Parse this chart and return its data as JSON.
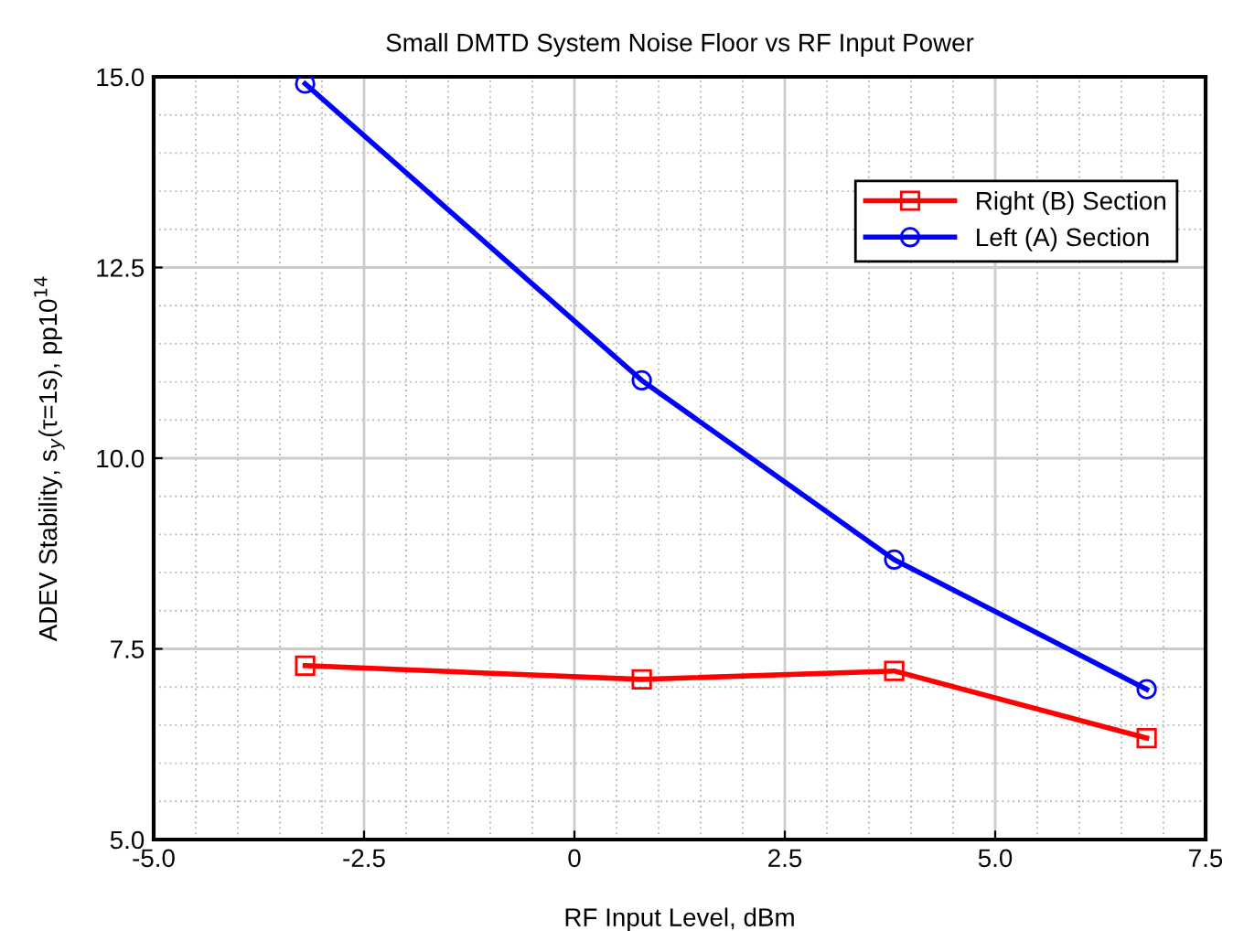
{
  "chart_data": {
    "type": "line",
    "title": "Small DMTD System Noise Floor vs RF Input Power",
    "xlabel": "RF Input Level, dBm",
    "ylabel": "ADEV Stability, s$_{y}$(τ=1s), pp10$^{14}$",
    "x": [
      -3.2,
      0.8,
      3.8,
      6.8
    ],
    "series": [
      {
        "name": "Right (B) Section",
        "color": "#ff0000",
        "marker": "square",
        "values": [
          7.28,
          7.1,
          7.21,
          6.33
        ]
      },
      {
        "name": "Left (A) Section",
        "color": "#0000ff",
        "marker": "circle",
        "values": [
          14.91,
          11.02,
          8.67,
          6.97
        ]
      }
    ],
    "xlim": [
      -5,
      7.5
    ],
    "xticks": [
      {
        "value": -5,
        "label": "-5.0"
      },
      {
        "value": -2.5,
        "label": "-2.5"
      },
      0,
      {
        "value": 2.5,
        "label": "2.5"
      },
      {
        "value": 5,
        "label": "5.0"
      },
      {
        "value": 7.5,
        "label": "7.5"
      }
    ],
    "ylim": [
      5,
      15
    ],
    "yticks": [
      {
        "value": 5,
        "label": "5.0"
      },
      {
        "value": 7.5,
        "label": "7.5"
      },
      {
        "value": 10,
        "label": "10.0"
      },
      {
        "value": 12.5,
        "label": "12.5"
      },
      {
        "value": 15,
        "label": "15.0"
      }
    ],
    "grid": true,
    "legend": "top right",
    "line_style": "solid"
  }
}
